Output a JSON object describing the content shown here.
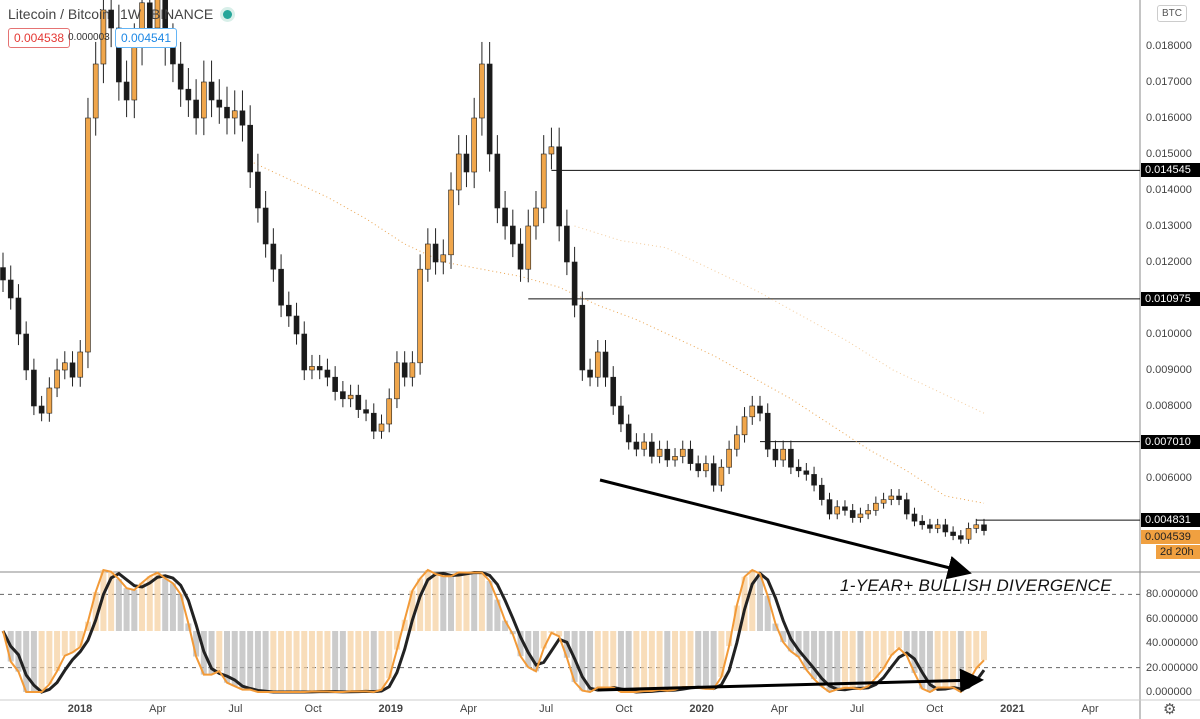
{
  "header": {
    "symbol": "Litecoin / Bitcoin",
    "interval": "1W",
    "exchange": "BINANCE",
    "bid": "0.004538",
    "spread": "0.000003",
    "ask": "0.004541"
  },
  "currency_badge": "BTC",
  "annotation": "1-YEAR+ BULLISH DIVERGENCE",
  "colors": {
    "up": "#f0a64b",
    "down": "#1a1a1a",
    "ma": "#e89a3c",
    "osc_k": "#f29a38",
    "osc_d": "#222222"
  },
  "chart_data": {
    "type": "candlestick",
    "title": "Litecoin / Bitcoin 1W BINANCE",
    "closes": [
      0.0115,
      0.011,
      0.01,
      0.009,
      0.008,
      0.0078,
      0.0085,
      0.009,
      0.0092,
      0.0088,
      0.0095,
      0.016,
      0.0175,
      0.019,
      0.0185,
      0.017,
      0.0165,
      0.018,
      0.0192,
      0.0185,
      0.0195,
      0.018,
      0.0175,
      0.0168,
      0.0165,
      0.016,
      0.017,
      0.0165,
      0.0163,
      0.016,
      0.0162,
      0.0158,
      0.0145,
      0.0135,
      0.0125,
      0.0118,
      0.0108,
      0.0105,
      0.01,
      0.009,
      0.0091,
      0.009,
      0.0088,
      0.0084,
      0.0082,
      0.0083,
      0.0079,
      0.0078,
      0.0073,
      0.0075,
      0.0082,
      0.0092,
      0.0088,
      0.0092,
      0.0118,
      0.0125,
      0.012,
      0.0122,
      0.014,
      0.015,
      0.0145,
      0.016,
      0.0175,
      0.015,
      0.0135,
      0.013,
      0.0125,
      0.0118,
      0.013,
      0.0135,
      0.015,
      0.0152,
      0.013,
      0.012,
      0.0108,
      0.009,
      0.0088,
      0.0095,
      0.0088,
      0.008,
      0.0075,
      0.007,
      0.0068,
      0.007,
      0.0066,
      0.0068,
      0.0065,
      0.0066,
      0.0068,
      0.0064,
      0.0062,
      0.0064,
      0.0058,
      0.0063,
      0.0068,
      0.0072,
      0.0077,
      0.008,
      0.0078,
      0.0068,
      0.0065,
      0.0068,
      0.0063,
      0.0062,
      0.0061,
      0.0058,
      0.0054,
      0.005,
      0.0052,
      0.0051,
      0.0049,
      0.005,
      0.0051,
      0.0053,
      0.0054,
      0.0055,
      0.0054,
      0.005,
      0.0048,
      0.0047,
      0.0046,
      0.0047,
      0.0045,
      0.0044,
      0.0043,
      0.0046,
      0.0047,
      0.004539
    ],
    "moving_averages": [
      {
        "name": "MA1",
        "start_index": 32,
        "values": [
          0.0148,
          0.0143,
          0.0138,
          0.0132,
          0.0125,
          0.012,
          0.0118,
          0.0116,
          0.0113,
          0.0108,
          0.0104,
          0.0099,
          0.0094,
          0.0088,
          0.0082,
          0.0075,
          0.0068,
          0.0062,
          0.0055,
          0.0053
        ]
      },
      {
        "name": "MA2",
        "start_index": 74,
        "values": [
          0.013,
          0.0126,
          0.0124,
          0.0118,
          0.0112,
          0.0105,
          0.0098,
          0.009,
          0.0084,
          0.0078
        ]
      }
    ],
    "levels": [
      {
        "value": 0.014545,
        "from_index": 71
      },
      {
        "value": 0.010975,
        "from_index": 68
      },
      {
        "value": 0.00701,
        "from_index": 98
      },
      {
        "value": 0.004831,
        "from_index": 126
      }
    ],
    "price_axis": [
      "0.018000",
      "0.017000",
      "0.016000",
      "0.015000",
      "0.014000",
      "0.013000",
      "0.012000",
      "0.010000",
      "0.009000",
      "0.008000",
      "0.006000"
    ],
    "price_tags": [
      {
        "label": "0.014545",
        "value": 0.014545
      },
      {
        "label": "0.010975",
        "value": 0.010975
      },
      {
        "label": "0.007010",
        "value": 0.00701
      },
      {
        "label": "0.004831",
        "value": 0.004831
      }
    ],
    "last_price": "0.004539",
    "countdown": "2d 20h",
    "osc_axis": [
      "80.000000",
      "60.000000",
      "40.000000",
      "20.000000",
      "0.000000"
    ],
    "time_axis": [
      "2018",
      "Apr",
      "Jul",
      "Oct",
      "2019",
      "Apr",
      "Jul",
      "Oct",
      "2020",
      "Apr",
      "Jul",
      "Oct",
      "2021",
      "Apr"
    ]
  }
}
